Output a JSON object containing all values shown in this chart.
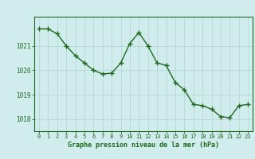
{
  "x": [
    0,
    1,
    2,
    3,
    4,
    5,
    6,
    7,
    8,
    9,
    10,
    11,
    12,
    13,
    14,
    15,
    16,
    17,
    18,
    19,
    20,
    21,
    22,
    23
  ],
  "y": [
    1021.7,
    1021.7,
    1021.5,
    1021.0,
    1020.6,
    1020.3,
    1020.0,
    1019.85,
    1019.88,
    1020.3,
    1021.1,
    1021.55,
    1021.0,
    1020.3,
    1020.2,
    1019.5,
    1019.2,
    1018.6,
    1018.55,
    1018.4,
    1018.1,
    1018.05,
    1018.55,
    1018.6
  ],
  "line_color": "#1a6b1a",
  "marker_color": "#1a6b1a",
  "bg_color": "#d0ecec",
  "grid_color": "#b8d8d8",
  "xlabel": "Graphe pression niveau de la mer (hPa)",
  "xlabel_color": "#1a6b1a",
  "tick_color": "#1a6b1a",
  "yticks": [
    1018,
    1019,
    1020,
    1021
  ],
  "ylim": [
    1017.5,
    1022.2
  ],
  "xlim": [
    -0.5,
    23.5
  ],
  "xticks": [
    0,
    1,
    2,
    3,
    4,
    5,
    6,
    7,
    8,
    9,
    10,
    11,
    12,
    13,
    14,
    15,
    16,
    17,
    18,
    19,
    20,
    21,
    22,
    23
  ]
}
